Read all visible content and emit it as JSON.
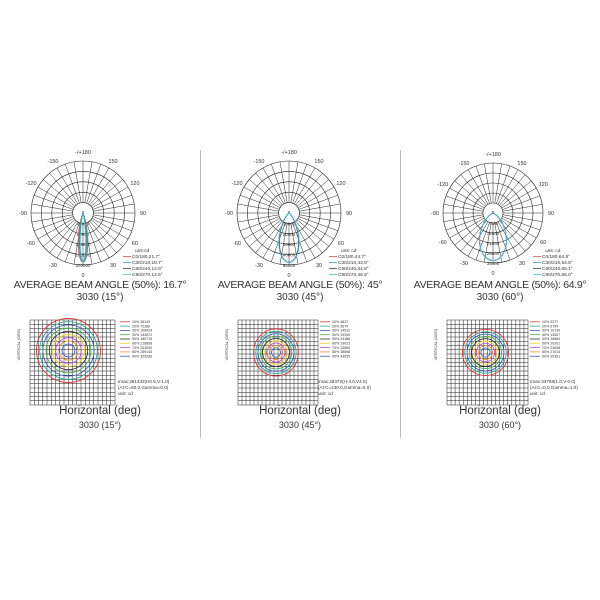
{
  "panels": [
    {
      "beam_text": "AVERAGE BEAM ANGLE (50%): 16.7°",
      "model": "3030 (15°)",
      "angle_labels": [
        "-/+180",
        "150",
        "120",
        "90",
        "60",
        "30",
        "0",
        "-30",
        "-60",
        "-90",
        "-120",
        "-150"
      ],
      "ring_labels": [
        "40000",
        "80000",
        "120000",
        "160000",
        "200000"
      ],
      "unit": "unit:cd",
      "curves": [
        {
          "label": "C0/180,21.7°",
          "angle": 21.7,
          "color": "#d9534f"
        },
        {
          "label": "C30/210,18.7°",
          "angle": 18.7,
          "color": "#3aa6a0"
        },
        {
          "label": "C60/240,13.9°",
          "angle": 13.9,
          "color": "#2b4a6b"
        },
        {
          "label": "C90/270,12.5°",
          "angle": 12.5,
          "color": "#49c0d8"
        }
      ],
      "iso_levels": [
        "10% 36143",
        "20% 72286",
        "30% 108429",
        "40% 144572",
        "50% 180715",
        "60% 216858",
        "70% 253000",
        "80% 289143",
        "90% 325286"
      ],
      "imax": [
        "Imax:361432(H0.5,V-1.0)",
        "(At:C=60.0,Gamma=0.0)",
        "unit: cd"
      ],
      "vertical_label": "VERTICAL (DEG)",
      "horizontal_label": "Horizontal (deg)",
      "model2": "3030 (15°)"
    },
    {
      "beam_text": "AVERAGE BEAM ANGLE (50%): 45°",
      "model": "3030 (45°)",
      "angle_labels": [
        "-/+180",
        "150",
        "120",
        "90",
        "60",
        "30",
        "0",
        "-30",
        "-60",
        "-90",
        "-120",
        "-150"
      ],
      "ring_labels": [
        "10000",
        "20000",
        "30000",
        "40000",
        "50000"
      ],
      "unit": "unit: cd",
      "curves": [
        {
          "label": "C0/180,44.7°",
          "angle": 44.7,
          "color": "#d9534f"
        },
        {
          "label": "C30/210,43.9°",
          "angle": 43.9,
          "color": "#3aa6a0"
        },
        {
          "label": "C60/240,44.8°",
          "angle": 44.8,
          "color": "#2b4a6b"
        },
        {
          "label": "C90/270,46.8°",
          "angle": 46.8,
          "color": "#49c0d8"
        }
      ],
      "iso_levels": [
        "10% 4837",
        "20% 9674",
        "30% 14512",
        "40% 19349",
        "50% 24186",
        "60% 29023",
        "70% 33860",
        "80% 38698",
        "90% 43535"
      ],
      "imax": [
        "Imax:48372(H-4.0,V4.5)",
        "(At:C=230.0,Gamma=6.0)",
        "unit: cd"
      ],
      "vertical_label": "VERTICAL (DEG)",
      "horizontal_label": "Horizontal (deg)",
      "model2": "3030 (45°)"
    },
    {
      "beam_text": "AVERAGE BEAM ANGLE (50%): 64.9°",
      "model": "3030 (60°)",
      "angle_labels": [
        "-/+180",
        "150",
        "120",
        "90",
        "60",
        "30",
        "0",
        "-30",
        "-60",
        "-90",
        "-120",
        "-150"
      ],
      "ring_labels": [
        "7000",
        "14000",
        "21000",
        "28000",
        "35000"
      ],
      "unit": "unit: cd",
      "curves": [
        {
          "label": "C0/180,64.8°",
          "angle": 64.8,
          "color": "#d9534f"
        },
        {
          "label": "C30/210,64.8°",
          "angle": 64.8,
          "color": "#3aa6a0"
        },
        {
          "label": "C60/240,65.1°",
          "angle": 65.1,
          "color": "#2b4a6b"
        },
        {
          "label": "C90/270,65.0°",
          "angle": 65.0,
          "color": "#49c0d8"
        }
      ],
      "iso_levels": [
        "10% 3377",
        "20% 6754",
        "30% 10130",
        "40% 13507",
        "50% 16884",
        "60% 20261",
        "70% 23638",
        "80% 27014",
        "90% 30391"
      ],
      "imax": [
        "Imax:33768(1.0,V-0.0)",
        "(At:C=0.0,Gamma=1.0)",
        "unit: cd"
      ],
      "vertical_label": "VERTICAL (DEG)",
      "horizontal_label": "Horizontal (deg)",
      "model2": "3030 (60°)"
    }
  ],
  "iso_colors": [
    "#e03a3a",
    "#2fa79b",
    "#3b5fc0",
    "#4caf50",
    "#333333",
    "#f2d21b",
    "#c94bc9",
    "#f08a24",
    "#3461c9"
  ]
}
